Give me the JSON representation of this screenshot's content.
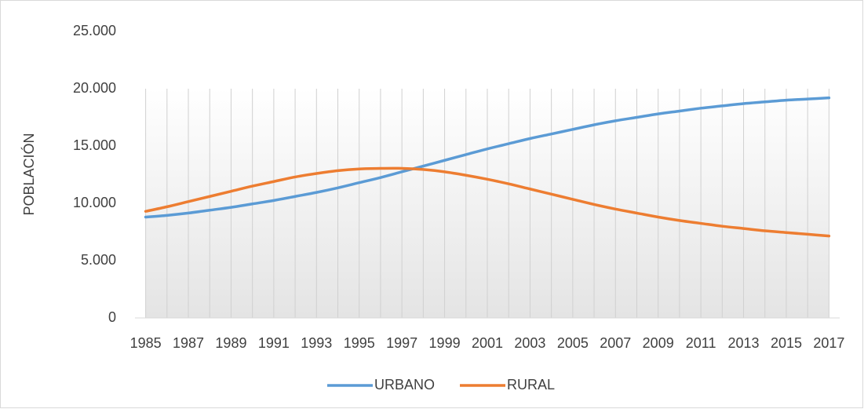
{
  "chart_data": {
    "type": "line",
    "ylabel": "POBLACIÓN",
    "categories": [
      "1985",
      null,
      "1987",
      null,
      "1989",
      null,
      "1991",
      null,
      "1993",
      null,
      "1995",
      null,
      "1997",
      null,
      "1999",
      null,
      "2001",
      null,
      "2003",
      null,
      "2005",
      null,
      "2007",
      null,
      "2009",
      null,
      "2011",
      null,
      "2013",
      null,
      "2015",
      null,
      "2017"
    ],
    "series": [
      {
        "name": "URBANO",
        "color": "#5b9bd5",
        "values": [
          8800,
          8950,
          9150,
          9400,
          9650,
          9950,
          10250,
          10600,
          10950,
          11350,
          11800,
          12250,
          12750,
          13250,
          13750,
          14250,
          14750,
          15200,
          15650,
          16050,
          16450,
          16850,
          17200,
          17500,
          17800,
          18050,
          18300,
          18500,
          18700,
          18850,
          19000,
          19100,
          19200
        ]
      },
      {
        "name": "RURAL",
        "color": "#ed7d31",
        "values": [
          9300,
          9700,
          10150,
          10600,
          11050,
          11500,
          11900,
          12300,
          12600,
          12850,
          13000,
          13050,
          13050,
          12950,
          12750,
          12450,
          12100,
          11700,
          11250,
          10800,
          10350,
          9900,
          9500,
          9150,
          8800,
          8500,
          8250,
          8000,
          7800,
          7600,
          7450,
          7300,
          7150
        ]
      }
    ],
    "ylim": [
      0,
      25000
    ],
    "yticks": [
      0,
      {
        "value": 5000,
        "label": "5.000"
      },
      {
        "value": 10000,
        "label": "10.000"
      },
      {
        "value": 15000,
        "label": "15.000"
      },
      {
        "value": 20000,
        "label": "20.000"
      },
      {
        "value": 25000,
        "label": "25.000"
      }
    ],
    "grid": "x",
    "legend": "bottom"
  }
}
